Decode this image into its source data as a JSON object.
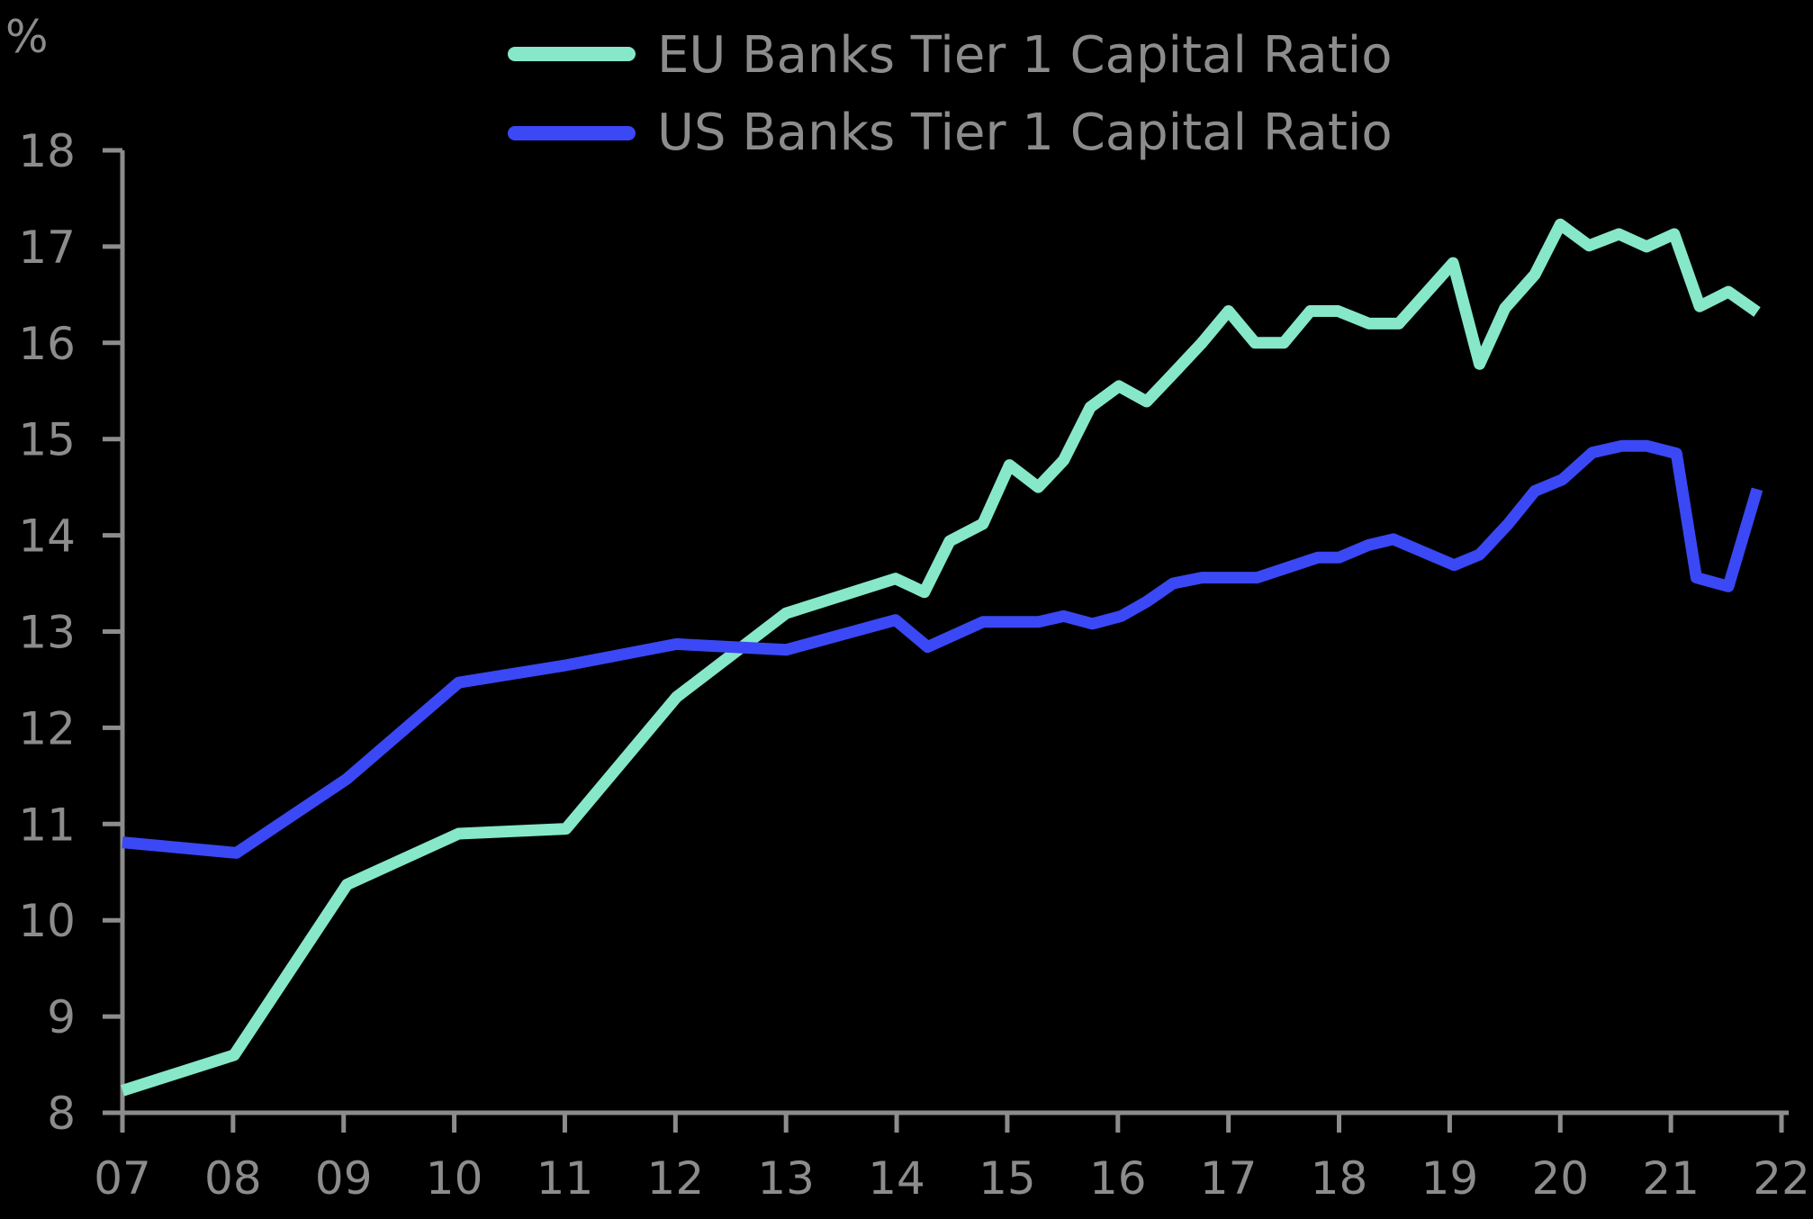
{
  "chart_data": {
    "type": "line",
    "title": "",
    "ylabel": "%",
    "xlabel": "",
    "ylim": [
      8,
      18
    ],
    "xlim": [
      7,
      22
    ],
    "grid": false,
    "legend_position": "top",
    "x_ticks": [
      "07",
      "08",
      "09",
      "10",
      "11",
      "12",
      "13",
      "14",
      "15",
      "16",
      "17",
      "18",
      "19",
      "20",
      "21",
      "22"
    ],
    "y_ticks": [
      8,
      9,
      10,
      11,
      12,
      13,
      14,
      15,
      16,
      17,
      18
    ],
    "series": [
      {
        "name": "EU Banks Tier 1 Capital Ratio",
        "color": "#86e8c8",
        "x": [
          7.0,
          8.01,
          9.03,
          10.04,
          11.01,
          12.01,
          13.0,
          13.99,
          14.25,
          14.48,
          14.78,
          15.02,
          15.28,
          15.51,
          15.75,
          16.01,
          16.26,
          16.5,
          16.76,
          17.0,
          17.24,
          17.5,
          17.74,
          17.99,
          18.27,
          18.54,
          19.03,
          19.27,
          19.5,
          19.77,
          20.0,
          20.26,
          20.53,
          20.78,
          21.03,
          21.26,
          21.52,
          21.78
        ],
        "values": [
          8.23,
          8.6,
          10.37,
          10.9,
          10.95,
          12.32,
          13.19,
          13.55,
          13.41,
          13.94,
          14.12,
          14.73,
          14.5,
          14.78,
          15.33,
          15.55,
          15.39,
          15.68,
          16.0,
          16.33,
          16.0,
          16.0,
          16.33,
          16.33,
          16.2,
          16.2,
          16.83,
          15.78,
          16.36,
          16.71,
          17.23,
          17.01,
          17.13,
          17.0,
          17.13,
          16.38,
          16.53,
          16.32
        ]
      },
      {
        "name": "US Banks Tier 1 Capital Ratio",
        "color": "#3b48f5",
        "x": [
          7.0,
          8.03,
          9.03,
          10.04,
          11.01,
          12.01,
          13.0,
          13.99,
          14.28,
          14.78,
          15.28,
          15.51,
          15.77,
          16.03,
          16.26,
          16.5,
          16.76,
          17.26,
          17.81,
          18.0,
          18.27,
          18.49,
          19.04,
          19.27,
          19.53,
          19.77,
          20.02,
          20.29,
          20.56,
          20.78,
          21.05,
          21.23,
          21.52,
          21.78
        ],
        "values": [
          10.81,
          10.7,
          11.47,
          12.47,
          12.65,
          12.87,
          12.81,
          13.12,
          12.84,
          13.1,
          13.1,
          13.16,
          13.08,
          13.16,
          13.31,
          13.5,
          13.56,
          13.56,
          13.77,
          13.77,
          13.9,
          13.96,
          13.69,
          13.8,
          14.12,
          14.46,
          14.58,
          14.86,
          14.93,
          14.93,
          14.85,
          13.56,
          13.47,
          14.48
        ]
      }
    ]
  },
  "legend": {
    "items": [
      {
        "label": "EU Banks Tier 1 Capital Ratio",
        "color": "#86e8c8"
      },
      {
        "label": "US Banks Tier 1 Capital Ratio",
        "color": "#3b48f5"
      }
    ]
  },
  "axis": {
    "y_unit_label": "%",
    "color": "#8c8c8c"
  }
}
